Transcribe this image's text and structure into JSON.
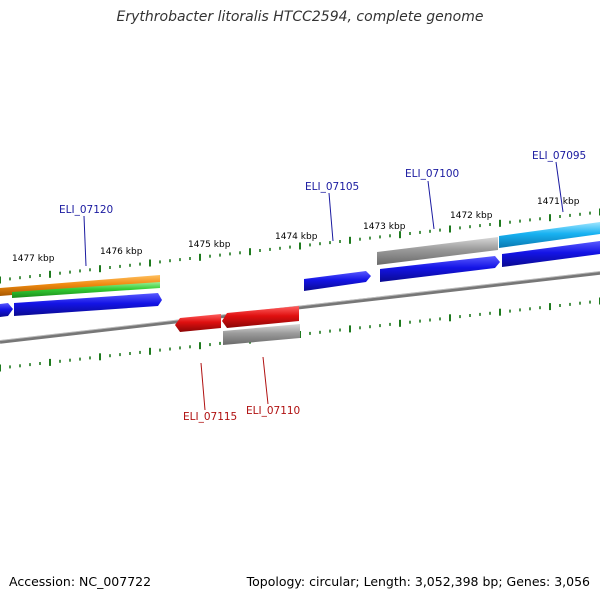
{
  "title": "Erythrobacter litoralis HTCC2594, complete genome",
  "accession": "Accession: NC_007722",
  "summary": "Topology: circular; Length: 3,052,398 bp; Genes: 3,056",
  "colors": {
    "backbone": "#777777",
    "tick": "#1e7a1e",
    "forward_label": "#1a1aa0",
    "reverse_label": "#b01010",
    "gene_blue": "#1a1ae0",
    "gene_red": "#e01515",
    "gene_gray": "#9a9a9a",
    "gene_cyan": "#20b0f0",
    "gene_orange": "#f08a10",
    "gene_green": "#33cc33"
  },
  "scale_labels": [
    {
      "id": "kbp-1477",
      "text": "1477 kbp"
    },
    {
      "id": "kbp-1476",
      "text": "1476 kbp"
    },
    {
      "id": "kbp-1475",
      "text": "1475 kbp"
    },
    {
      "id": "kbp-1474",
      "text": "1474 kbp"
    },
    {
      "id": "kbp-1473",
      "text": "1473 kbp"
    },
    {
      "id": "kbp-1472",
      "text": "1472 kbp"
    },
    {
      "id": "kbp-1471",
      "text": "1471 kbp"
    }
  ],
  "gene_labels": [
    {
      "id": "ELI_07120",
      "text": "ELI_07120",
      "strand": "forward"
    },
    {
      "id": "ELI_07105",
      "text": "ELI_07105",
      "strand": "forward"
    },
    {
      "id": "ELI_07100",
      "text": "ELI_07100",
      "strand": "forward"
    },
    {
      "id": "ELI_07095",
      "text": "ELI_07095",
      "strand": "forward"
    },
    {
      "id": "ELI_07115",
      "text": "ELI_07115",
      "strand": "reverse"
    },
    {
      "id": "ELI_07110",
      "text": "ELI_07110",
      "strand": "reverse"
    }
  ]
}
